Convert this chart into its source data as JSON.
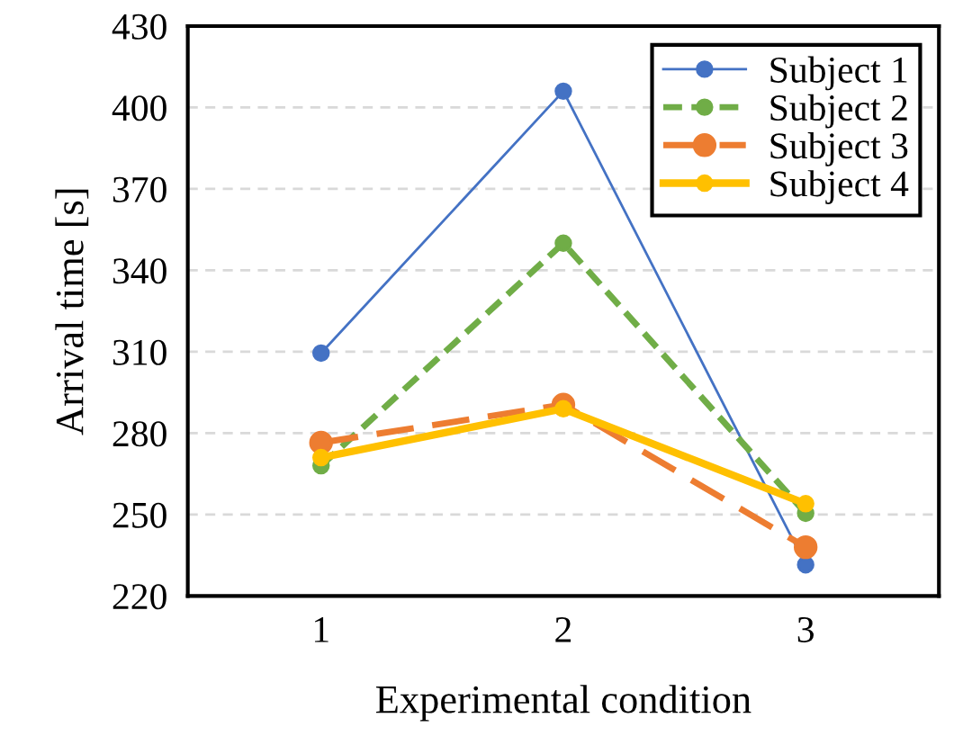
{
  "chart_data": {
    "type": "line",
    "xlabel": "Experimental condition",
    "ylabel": "Arrival time [s]",
    "categories": [
      "1",
      "2",
      "3"
    ],
    "series": [
      {
        "name": "Subject 1",
        "color": "#4472c4",
        "values": [
          309.5,
          406,
          231.5
        ],
        "line_style": "solid"
      },
      {
        "name": "Subject 2",
        "color": "#70ad47",
        "values": [
          268,
          350,
          250.5
        ],
        "line_style": "dashed"
      },
      {
        "name": "Subject 3",
        "color": "#ed7d31",
        "values": [
          276.5,
          290.5,
          238
        ],
        "line_style": "dashed"
      },
      {
        "name": "Subject 4",
        "color": "#ffc000",
        "values": [
          271,
          289,
          254
        ],
        "line_style": "solid"
      }
    ],
    "ylim": [
      220,
      430
    ],
    "yticks": [
      220,
      250,
      280,
      310,
      340,
      370,
      400,
      430
    ],
    "grid": "y",
    "legend": "top right",
    "marker": "circle"
  }
}
